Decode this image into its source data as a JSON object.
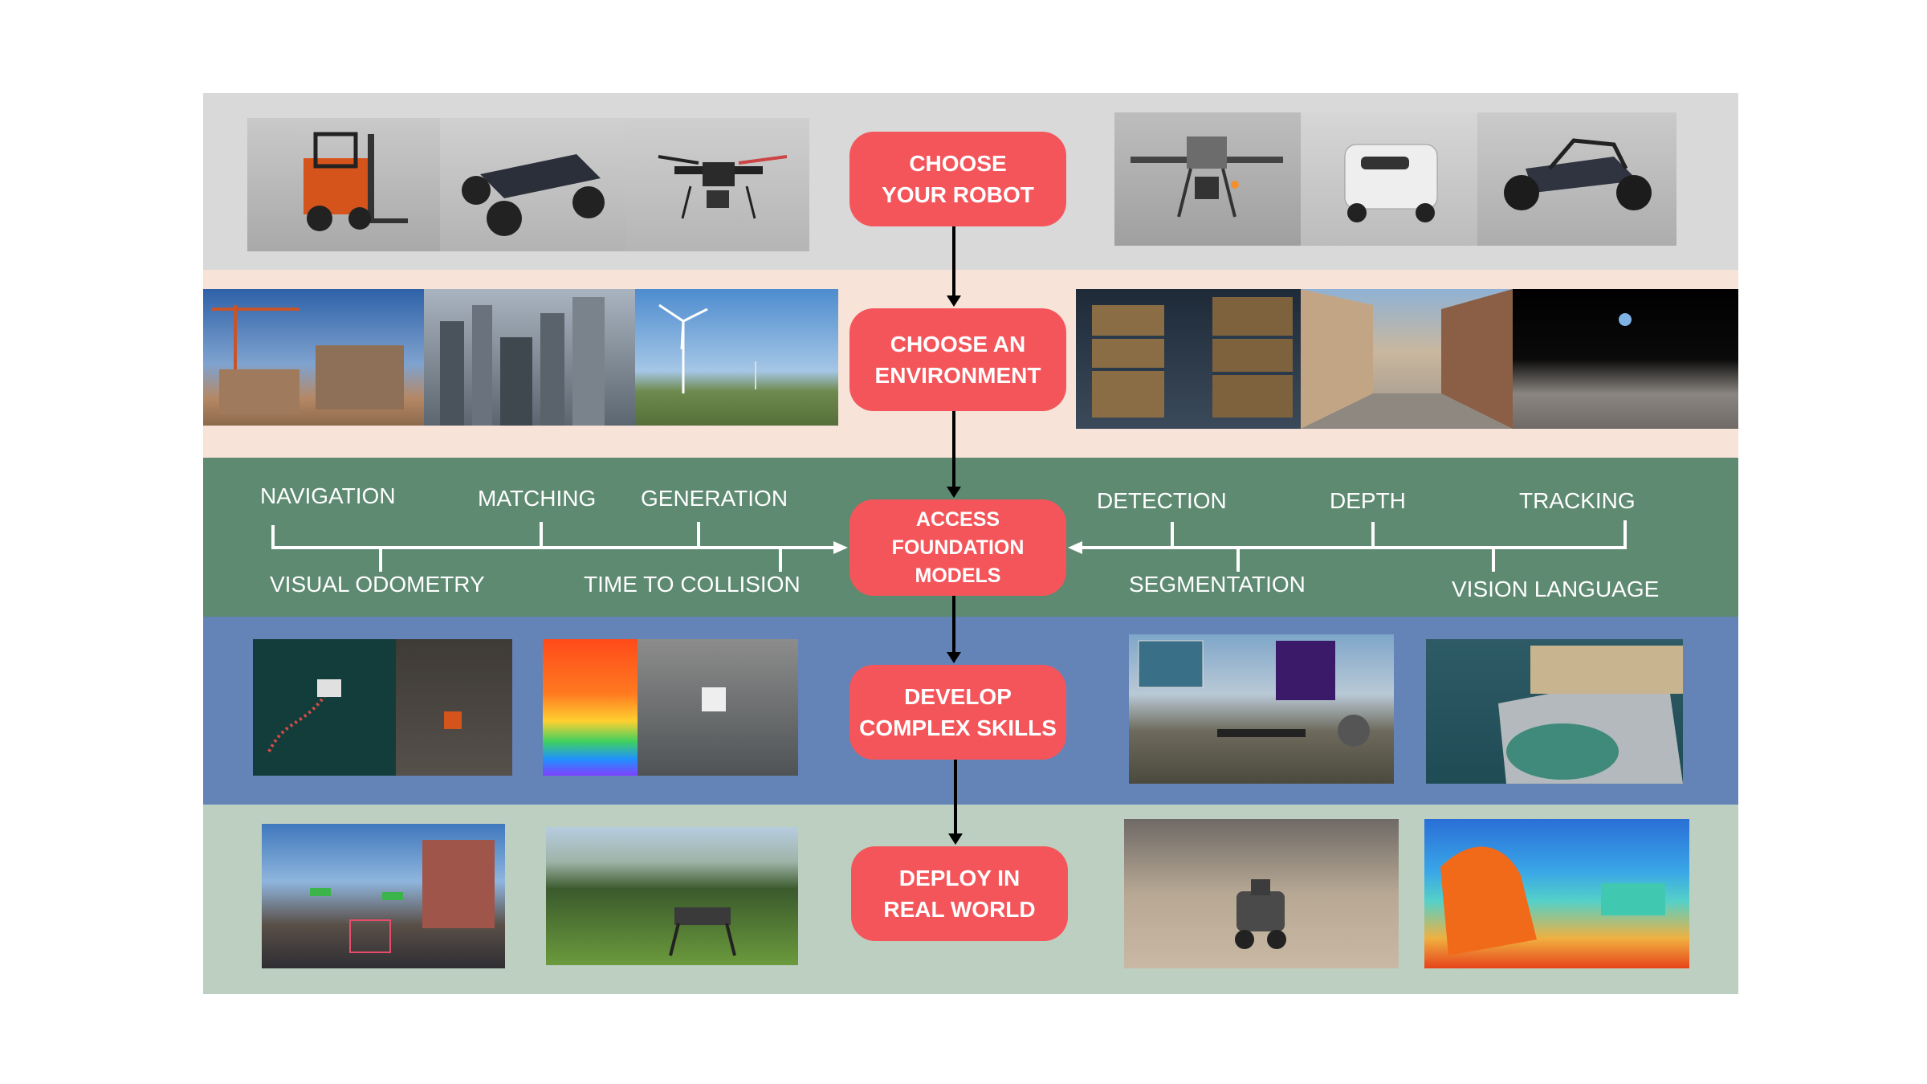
{
  "steps": [
    "CHOOSE\nYOUR ROBOT",
    "CHOOSE AN\nENVIRONMENT",
    "ACCESS\nFOUNDATION\nMODELS",
    "DEVELOP\nCOMPLEX SKILLS",
    "DEPLOY IN\nREAL WORLD"
  ],
  "skills_left_top": [
    "NAVIGATION",
    "MATCHING",
    "GENERATION"
  ],
  "skills_left_bottom": [
    "VISUAL ODOMETRY",
    "TIME TO COLLISION"
  ],
  "skills_right_top": [
    "DETECTION",
    "DEPTH",
    "TRACKING"
  ],
  "skills_right_bottom": [
    "SEGMENTATION",
    "VISION LANGUAGE"
  ],
  "colors": {
    "step_fill": "#f4555a",
    "band_robot": "#d9d9d9",
    "band_environment": "#f7e3d7",
    "band_models": "#5d8a71",
    "band_skills": "#6484b7",
    "band_deploy": "#bccfc1",
    "arrow": "#000000",
    "axis": "#ffffff"
  },
  "images": {
    "robots": [
      "forklift",
      "rover",
      "quadcopter-drone",
      "industrial-drone",
      "delivery-robot",
      "dune-buggy"
    ],
    "environments": [
      "construction-site",
      "city-skyline",
      "wind-farm",
      "warehouse",
      "city-street",
      "moon-surface"
    ],
    "skills": [
      "point-cloud-warehouse",
      "depth-map-office",
      "drone-wildfire",
      "helipad-tracking"
    ],
    "deploy": [
      "street-detection",
      "robot-dog-field",
      "indoor-robot",
      "depth-estimation"
    ]
  }
}
